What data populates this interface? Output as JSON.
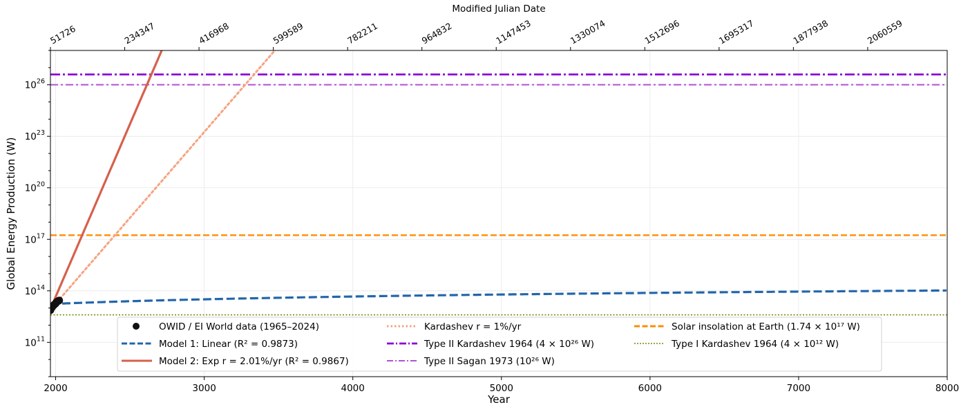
{
  "chart_data": {
    "type": "line",
    "xlabel": "Year",
    "ylabel": "Global Energy Production  (W)",
    "top_xlabel": "Modified Julian Date",
    "xlim": [
      1965,
      8000
    ],
    "ylim_log10": [
      9.0,
      28.0
    ],
    "y_scale": "log",
    "grid": true,
    "legend_placement": "lower-center",
    "x_ticks": [
      2000,
      3000,
      4000,
      5000,
      6000,
      7000,
      8000
    ],
    "x_tick_labels": [
      "2000",
      "3000",
      "4000",
      "5000",
      "6000",
      "7000",
      "8000"
    ],
    "top_ticks": [
      {
        "year": 1965,
        "label": "51726"
      },
      {
        "year": 2465,
        "label": "234347"
      },
      {
        "year": 2965,
        "label": "416968"
      },
      {
        "year": 3465,
        "label": "599589"
      },
      {
        "year": 3965,
        "label": "782211"
      },
      {
        "year": 4465,
        "label": "964832"
      },
      {
        "year": 4965,
        "label": "1147453"
      },
      {
        "year": 5465,
        "label": "1330074"
      },
      {
        "year": 5965,
        "label": "1512696"
      },
      {
        "year": 6465,
        "label": "1695317"
      },
      {
        "year": 6965,
        "label": "1877938"
      },
      {
        "year": 7465,
        "label": "2060559"
      }
    ],
    "y_ticks": [
      {
        "exp": 11,
        "base": "10",
        "sup": "11"
      },
      {
        "exp": 14,
        "base": "10",
        "sup": "14"
      },
      {
        "exp": 17,
        "base": "10",
        "sup": "17"
      },
      {
        "exp": 20,
        "base": "10",
        "sup": "20"
      },
      {
        "exp": 23,
        "base": "10",
        "sup": "23"
      },
      {
        "exp": 26,
        "base": "10",
        "sup": "26"
      }
    ],
    "owid_data": {
      "x": [
        1965,
        1970,
        1975,
        1980,
        1985,
        1990,
        1995,
        2000,
        2005,
        2010,
        2015,
        2020,
        2024
      ],
      "log10_y": [
        12.87,
        12.97,
        13.03,
        13.1,
        13.14,
        13.19,
        13.22,
        13.26,
        13.32,
        13.37,
        13.4,
        13.42,
        13.44
      ]
    },
    "horizontal_lines": [
      {
        "name": "type2_kardashev",
        "log10_y": 26.6,
        "color": "#8b00d4",
        "style": "dashdot-thick"
      },
      {
        "name": "type2_sagan",
        "log10_y": 26.0,
        "color": "#b34fd8",
        "style": "dashdot-thin"
      },
      {
        "name": "solar_insolation",
        "log10_y": 17.24,
        "color": "#ff8c00",
        "style": "dashed"
      },
      {
        "name": "type1_kardashev",
        "log10_y": 12.6,
        "color": "#6b8e00",
        "style": "dotted"
      }
    ],
    "models": {
      "linear": {
        "color": "#2166ac",
        "x0": 1965,
        "a": 17000000000000.0,
        "b": 14500000000.0
      },
      "exp": {
        "color": "#d6604d",
        "x0": 1965,
        "log10_y0": 12.95,
        "rate": 0.0201
      },
      "kardashev": {
        "color": "#f4a582",
        "x0": 1965,
        "log10_y0": 12.9,
        "rate": 0.01
      }
    },
    "legend": {
      "col1": [
        {
          "kind": "dot",
          "color": "#111111",
          "text": "OWID / EI World data  (1965–2024)"
        },
        {
          "kind": "dashed",
          "color": "#2166ac",
          "text": "Model 1: Linear  (R² = 0.9873)"
        },
        {
          "kind": "solid",
          "color": "#d6604d",
          "text": "Model 2: Exp  r = 2.01%/yr  (R² = 0.9867)"
        }
      ],
      "col2": [
        {
          "kind": "dotted",
          "color": "#f4a582",
          "text": "Kardashev r = 1%/yr"
        },
        {
          "kind": "dashdot-thick",
          "color": "#8b00d4",
          "text": "Type II  Kardashev 1964  (4 × 10²⁶ W)"
        },
        {
          "kind": "dashdot-thin",
          "color": "#b34fd8",
          "text": "Type II  Sagan 1973  (10²⁶ W)"
        }
      ],
      "col3": [
        {
          "kind": "dashed",
          "color": "#ff8c00",
          "text": "Solar insolation at Earth  (1.74 × 10¹⁷ W)"
        },
        {
          "kind": "dotted-green",
          "color": "#6b8e00",
          "text": "Type I  Kardashev 1964  (4 × 10¹² W)"
        }
      ]
    }
  }
}
